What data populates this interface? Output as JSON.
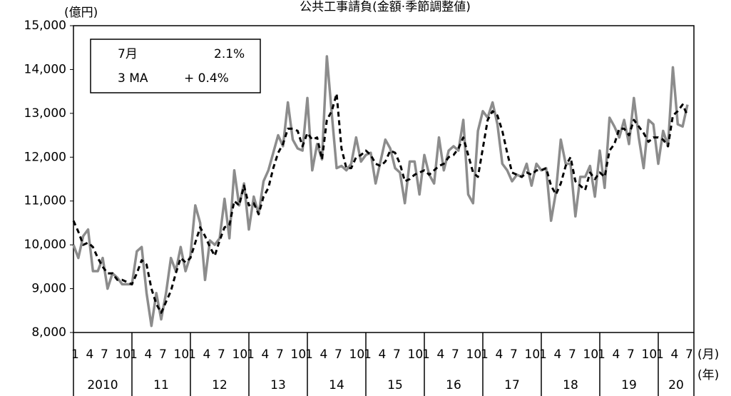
{
  "chart_data": {
    "type": "line",
    "title": "公共工事請負(金額·季節調整値)",
    "y_unit": "(億円)",
    "x_unit_month": "(月)",
    "x_unit_year": "(年)",
    "info_box": [
      [
        "7月",
        "2.1%"
      ],
      [
        "3 MA",
        "+ 0.4%"
      ]
    ],
    "categories": [
      "1",
      null,
      null,
      "4",
      null,
      null,
      "7",
      null,
      null,
      "10",
      null,
      null,
      "1",
      null,
      null,
      "4",
      null,
      null,
      "7",
      null,
      null,
      "10",
      null,
      null,
      "1",
      null,
      null,
      "4",
      null,
      null,
      "7",
      null,
      null,
      "10",
      null,
      null,
      "1",
      null,
      null,
      "4",
      null,
      null,
      "7",
      null,
      null,
      "10",
      null,
      null,
      "1",
      null,
      null,
      "4",
      null,
      null,
      "7",
      null,
      null,
      "10",
      null,
      null,
      "1",
      null,
      null,
      "4",
      null,
      null,
      "7",
      null,
      null,
      "10",
      null,
      null,
      "1",
      null,
      null,
      "4",
      null,
      null,
      "7",
      null,
      null,
      "10",
      null,
      null,
      "1",
      null,
      null,
      "4",
      null,
      null,
      "7",
      null,
      null,
      "10",
      null,
      null,
      "1",
      null,
      null,
      "4",
      null,
      null,
      "7",
      null,
      null,
      "10",
      null,
      null,
      "1",
      null,
      null,
      "4",
      null,
      null,
      "7",
      null,
      null,
      "10",
      null,
      null,
      "1",
      null,
      null,
      "4",
      null,
      null,
      "7"
    ],
    "years": [
      "2010",
      "11",
      "12",
      "13",
      "14",
      "15",
      "16",
      "17",
      "18",
      "19",
      "20"
    ],
    "series": [
      {
        "color": "#8c8c8c",
        "dash": false,
        "values": [
          10000,
          9700,
          10200,
          10350,
          9400,
          9400,
          9700,
          9000,
          9350,
          9250,
          9100,
          9100,
          9100,
          9850,
          9950,
          8900,
          8150,
          8900,
          8300,
          8900,
          9700,
          9400,
          9950,
          9400,
          9750,
          10900,
          10500,
          9200,
          10100,
          10000,
          10150,
          11050,
          10150,
          11700,
          10900,
          11400,
          10350,
          11100,
          10700,
          11450,
          11700,
          12100,
          12500,
          12250,
          13250,
          12400,
          12200,
          12150,
          13350,
          11700,
          12300,
          11950,
          14300,
          13000,
          11750,
          11800,
          11700,
          11850,
          12450,
          11900,
          12050,
          12100,
          11400,
          11900,
          12400,
          12200,
          11750,
          11650,
          10950,
          11900,
          11900,
          11150,
          12050,
          11600,
          11400,
          12450,
          11700,
          12150,
          12250,
          12150,
          12850,
          11150,
          10950,
          12600,
          13050,
          12900,
          13250,
          12750,
          11850,
          11700,
          11450,
          11600,
          11550,
          11850,
          11350,
          11850,
          11700,
          11750,
          10550,
          11200,
          12400,
          11850,
          11850,
          10650,
          11550,
          11550,
          11800,
          11100,
          12150,
          11300,
          12900,
          12700,
          12450,
          12850,
          12300,
          13350,
          12450,
          11750,
          12850,
          12750,
          11850,
          12600,
          12250,
          14050,
          12750,
          12700,
          13200
        ]
      },
      {
        "color": "#000000",
        "dash": true,
        "values": [
          10550,
          10300,
          10000,
          10050,
          9950,
          9700,
          9500,
          9350,
          9350,
          9200,
          9200,
          9150,
          9100,
          9350,
          9650,
          9550,
          9000,
          8650,
          8450,
          8700,
          8950,
          9350,
          9700,
          9600,
          9700,
          10050,
          10400,
          10200,
          9950,
          9750,
          10100,
          10400,
          10450,
          11000,
          10900,
          11350,
          10900,
          10950,
          10700,
          11100,
          11300,
          11750,
          12100,
          12300,
          12650,
          12650,
          12600,
          12250,
          12550,
          12400,
          12450,
          11950,
          12850,
          13050,
          13450,
          12200,
          11750,
          11750,
          12000,
          12050,
          12150,
          12050,
          11850,
          11800,
          11900,
          12150,
          12100,
          11850,
          11450,
          11500,
          11600,
          11650,
          11700,
          11600,
          11700,
          11800,
          11850,
          12000,
          12050,
          12200,
          12450,
          12050,
          11650,
          11550,
          12200,
          12850,
          13050,
          12950,
          12600,
          12100,
          11650,
          11600,
          11550,
          11650,
          11600,
          11700,
          11700,
          11750,
          11350,
          11150,
          11400,
          11800,
          12000,
          11450,
          11350,
          11250,
          11650,
          11500,
          11650,
          11550,
          12150,
          12300,
          12650,
          12650,
          12500,
          12850,
          12700,
          12550,
          12350,
          12450,
          12450,
          12400,
          12250,
          12950,
          13050,
          13200,
          12950
        ]
      }
    ],
    "ylim": [
      8000,
      15000
    ],
    "yticks": [
      {
        "value": 8000,
        "label": "8,000"
      },
      {
        "value": 9000,
        "label": "9,000"
      },
      {
        "value": 10000,
        "label": "10,000"
      },
      {
        "value": 11000,
        "label": "11,000"
      },
      {
        "value": 12000,
        "label": "12,000"
      },
      {
        "value": 13000,
        "label": "13,000"
      },
      {
        "value": 14000,
        "label": "14,000"
      },
      {
        "value": 15000,
        "label": "15,000"
      }
    ],
    "grid": false
  }
}
